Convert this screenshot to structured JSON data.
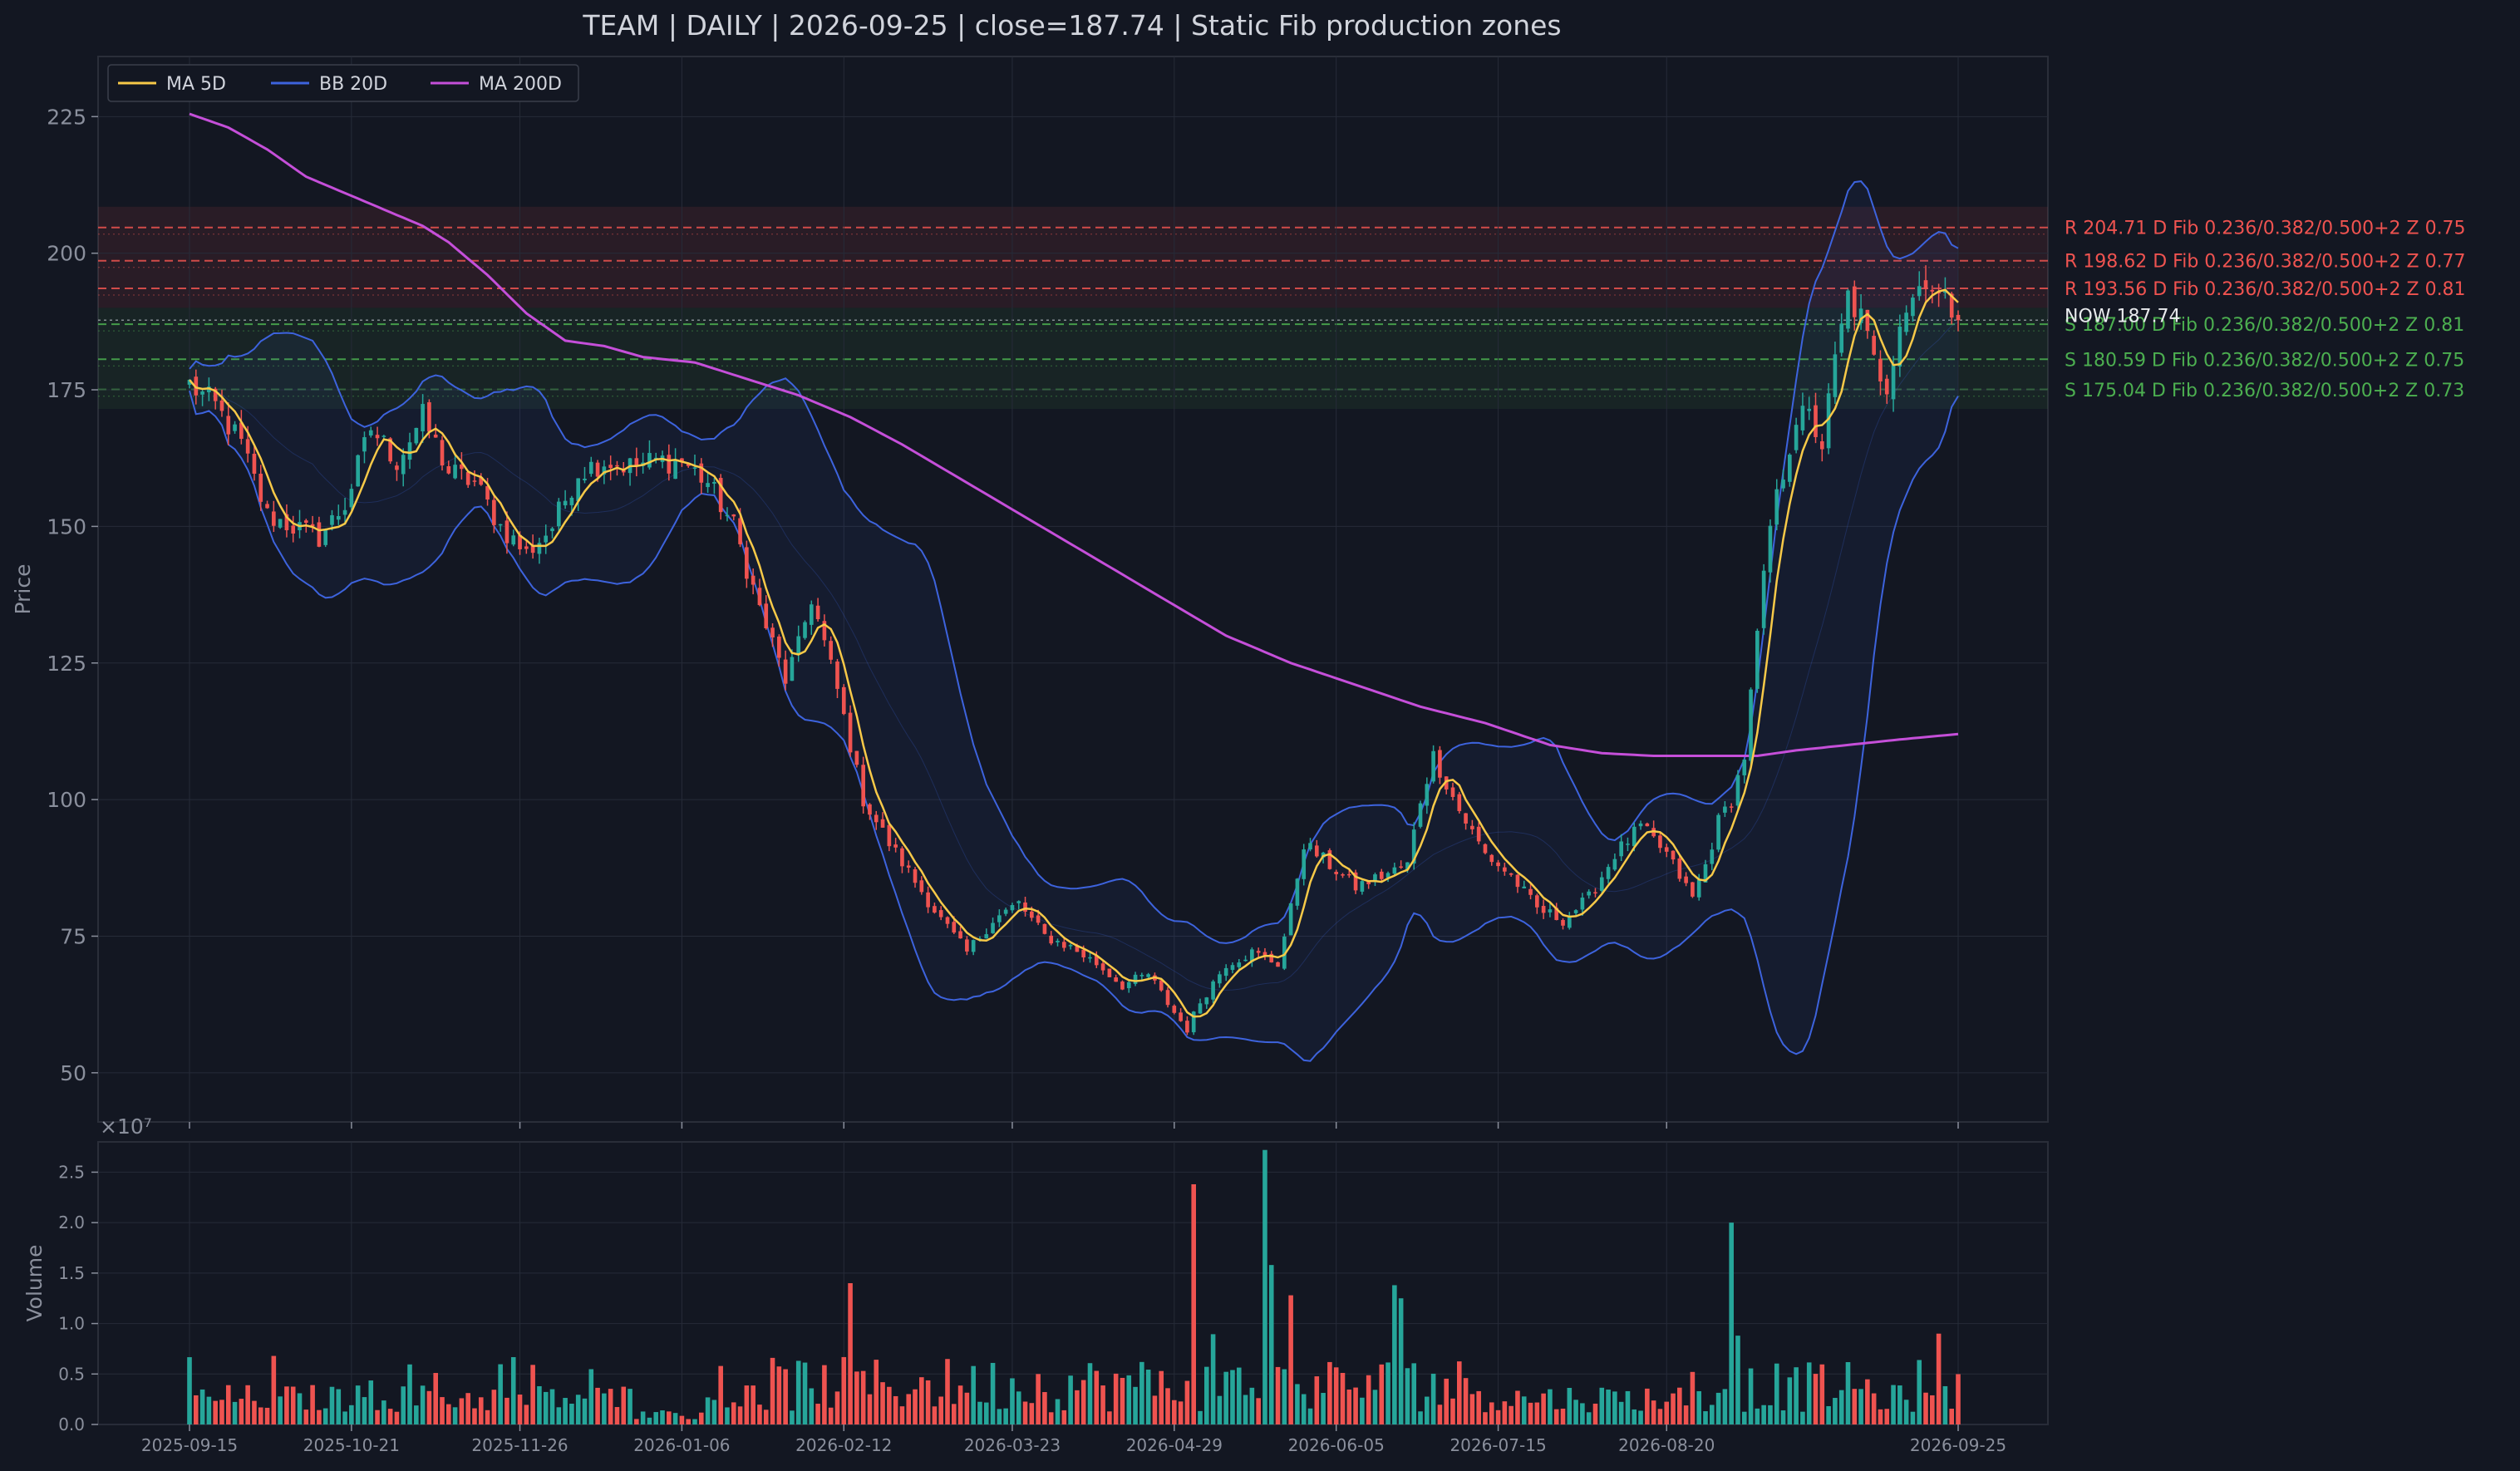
{
  "title": "TEAM  |  DAILY  |  2026-09-25  |  close=187.74  |  Static Fib production zones",
  "colors": {
    "background": "#131722",
    "grid": "#262b38",
    "up": "#26a69a",
    "down": "#ef5350",
    "ma5": "#f7c948",
    "bb": "#3d63dd",
    "ma200": "#c54fd9",
    "resistance": "#ef5350",
    "support": "#4caf50",
    "text": "#d1d4dc",
    "muted": "#8a8f9c"
  },
  "chart_data": {
    "type": "candlestick",
    "ticker": "TEAM",
    "interval": "DAILY",
    "last_date": "2026-09-25",
    "close": 187.74,
    "price_axis": {
      "ylabel": "Price",
      "ylim": [
        41,
        236
      ],
      "ticks": [
        50,
        75,
        100,
        125,
        150,
        175,
        200,
        225
      ]
    },
    "volume_axis": {
      "ylabel": "Volume",
      "scale_label": "×10⁷",
      "ylim": [
        0,
        2.8
      ],
      "ticks": [
        "0.0",
        "0.5",
        "1.0",
        "1.5",
        "2.0",
        "2.5"
      ],
      "tick_values": [
        0,
        0.5,
        1.0,
        1.5,
        2.0,
        2.5
      ]
    },
    "x_ticks": [
      "2025-09-15",
      "2025-10-21",
      "2025-11-26",
      "2026-01-06",
      "2026-02-12",
      "2026-03-23",
      "2026-04-29",
      "2026-06-05",
      "2026-07-15",
      "2026-08-20",
      "2026-09-25"
    ],
    "legend": [
      {
        "name": "MA 5D",
        "color": "#f7c948"
      },
      {
        "name": "BB 20D",
        "color": "#3d63dd"
      },
      {
        "name": "MA 200D",
        "color": "#c54fd9"
      }
    ],
    "close_anchors": [
      [
        0,
        176
      ],
      [
        4,
        172
      ],
      [
        8,
        165
      ],
      [
        12,
        152
      ],
      [
        16,
        150
      ],
      [
        20,
        148
      ],
      [
        24,
        154
      ],
      [
        28,
        168
      ],
      [
        32,
        162
      ],
      [
        36,
        170
      ],
      [
        40,
        160
      ],
      [
        44,
        158
      ],
      [
        48,
        150
      ],
      [
        52,
        145
      ],
      [
        56,
        150
      ],
      [
        60,
        160
      ],
      [
        64,
        162
      ],
      [
        68,
        161
      ],
      [
        72,
        162
      ],
      [
        76,
        162
      ],
      [
        80,
        158
      ],
      [
        84,
        150
      ],
      [
        88,
        135
      ],
      [
        92,
        122
      ],
      [
        94,
        128
      ],
      [
        96,
        137
      ],
      [
        100,
        120
      ],
      [
        104,
        100
      ],
      [
        108,
        92
      ],
      [
        112,
        85
      ],
      [
        116,
        78
      ],
      [
        120,
        72
      ],
      [
        124,
        78
      ],
      [
        128,
        81
      ],
      [
        132,
        75
      ],
      [
        136,
        73
      ],
      [
        140,
        70
      ],
      [
        144,
        66
      ],
      [
        148,
        68
      ],
      [
        152,
        61
      ],
      [
        154,
        58
      ],
      [
        156,
        63
      ],
      [
        160,
        70
      ],
      [
        164,
        72
      ],
      [
        168,
        70
      ],
      [
        170,
        80
      ],
      [
        172,
        92
      ],
      [
        176,
        88
      ],
      [
        180,
        84
      ],
      [
        184,
        86
      ],
      [
        188,
        88
      ],
      [
        190,
        100
      ],
      [
        192,
        108
      ],
      [
        196,
        98
      ],
      [
        200,
        90
      ],
      [
        204,
        86
      ],
      [
        208,
        80
      ],
      [
        212,
        78
      ],
      [
        216,
        82
      ],
      [
        220,
        90
      ],
      [
        224,
        95
      ],
      [
        228,
        90
      ],
      [
        232,
        82
      ],
      [
        234,
        88
      ],
      [
        236,
        96
      ],
      [
        238,
        100
      ],
      [
        240,
        108
      ],
      [
        242,
        130
      ],
      [
        244,
        150
      ],
      [
        246,
        160
      ],
      [
        248,
        170
      ],
      [
        250,
        170
      ],
      [
        252,
        165
      ],
      [
        254,
        180
      ],
      [
        256,
        192
      ],
      [
        258,
        188
      ],
      [
        260,
        180
      ],
      [
        262,
        176
      ],
      [
        264,
        188
      ],
      [
        266,
        192
      ],
      [
        268,
        196
      ],
      [
        270,
        192
      ],
      [
        272,
        190
      ],
      [
        273,
        187.74
      ]
    ],
    "volume_spikes": [
      {
        "i": 102,
        "v": 1.4,
        "dir": "down"
      },
      {
        "i": 155,
        "v": 2.38,
        "dir": "down"
      },
      {
        "i": 166,
        "v": 2.72,
        "dir": "up"
      },
      {
        "i": 167,
        "v": 1.58,
        "dir": "up"
      },
      {
        "i": 170,
        "v": 1.28,
        "dir": "down"
      },
      {
        "i": 186,
        "v": 1.38,
        "dir": "up"
      },
      {
        "i": 187,
        "v": 1.25,
        "dir": "up"
      },
      {
        "i": 238,
        "v": 2.0,
        "dir": "up"
      },
      {
        "i": 239,
        "v": 0.88,
        "dir": "up"
      },
      {
        "i": 270,
        "v": 0.9,
        "dir": "down"
      }
    ],
    "ma200_anchors": [
      [
        0,
        225.5
      ],
      [
        6,
        223
      ],
      [
        12,
        219
      ],
      [
        18,
        214
      ],
      [
        24,
        211
      ],
      [
        30,
        208
      ],
      [
        36,
        205
      ],
      [
        40,
        202
      ],
      [
        46,
        196
      ],
      [
        52,
        189
      ],
      [
        58,
        184
      ],
      [
        64,
        183
      ],
      [
        70,
        181
      ],
      [
        78,
        180
      ],
      [
        86,
        177
      ],
      [
        94,
        174
      ],
      [
        102,
        170
      ],
      [
        110,
        165
      ],
      [
        120,
        158
      ],
      [
        130,
        151
      ],
      [
        140,
        144
      ],
      [
        150,
        137
      ],
      [
        160,
        130
      ],
      [
        170,
        125
      ],
      [
        180,
        121
      ],
      [
        190,
        117
      ],
      [
        200,
        114
      ],
      [
        210,
        110
      ],
      [
        218,
        108.5
      ],
      [
        226,
        108
      ],
      [
        234,
        108
      ],
      [
        242,
        108
      ],
      [
        248,
        109
      ],
      [
        256,
        110
      ],
      [
        264,
        111
      ],
      [
        273,
        112
      ]
    ],
    "zones": [
      {
        "kind": "R",
        "level": 204.71,
        "label": "R 204.71  D  Fib 0.236/0.382/0.500+2  Z 0.75"
      },
      {
        "kind": "R",
        "level": 198.62,
        "label": "R 198.62  D  Fib 0.236/0.382/0.500+2  Z 0.77"
      },
      {
        "kind": "R",
        "level": 193.56,
        "label": "R 193.56  D  Fib 0.236/0.382/0.500+2  Z 0.81"
      },
      {
        "kind": "S",
        "level": 187.0,
        "label": "S 187.00  D  Fib 0.236/0.382/0.500+2  Z 0.81"
      },
      {
        "kind": "S",
        "level": 180.59,
        "label": "S 180.59  D  Fib 0.236/0.382/0.500+2  Z 0.75"
      },
      {
        "kind": "S",
        "level": 175.04,
        "label": "S 175.04  D  Fib 0.236/0.382/0.500+2  Z 0.73"
      }
    ],
    "now_label": "NOW 187.74",
    "grid": true,
    "legend_position": "top-left"
  }
}
